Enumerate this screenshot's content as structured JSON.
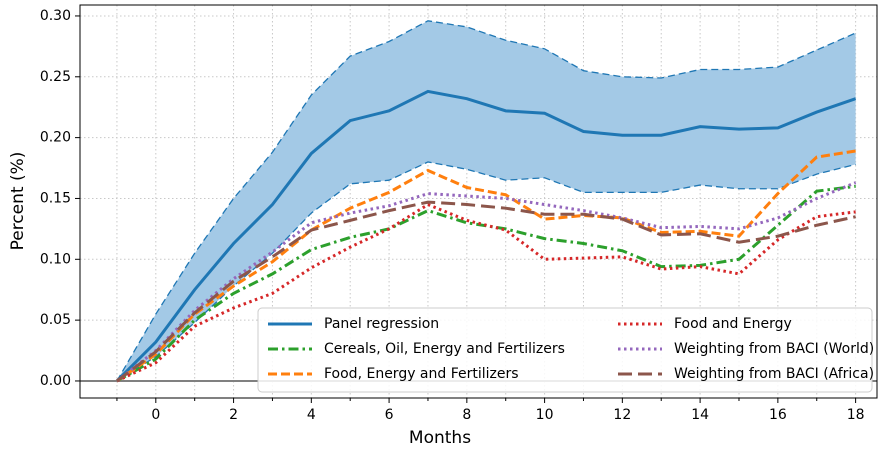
{
  "chart_data": {
    "type": "line",
    "x_label": "Months",
    "y_label": "Percent (%)",
    "x": [
      -1,
      0,
      1,
      2,
      3,
      4,
      5,
      6,
      7,
      8,
      9,
      10,
      11,
      12,
      13,
      14,
      15,
      16,
      17,
      18
    ],
    "xlim": [
      -1.95,
      18.55
    ],
    "xticks": [
      0,
      2,
      4,
      6,
      8,
      10,
      12,
      14,
      16,
      18
    ],
    "x_minor_ticks": [
      -1,
      1,
      3,
      5,
      7,
      9,
      11,
      13,
      15,
      17
    ],
    "ylim": [
      -0.014,
      0.309
    ],
    "yticks": [
      {
        "value": 0,
        "label": "0.00"
      },
      {
        "value": 0.05,
        "label": "0.05"
      },
      {
        "value": 0.1,
        "label": "0.10"
      },
      {
        "value": 0.15,
        "label": "0.15"
      },
      {
        "value": 0.2,
        "label": "0.20"
      },
      {
        "value": 0.25,
        "label": "0.25"
      },
      {
        "value": 0.3,
        "label": "0.30"
      }
    ],
    "grid": true,
    "reference_line": 0,
    "legend_position": "lower right",
    "band": {
      "color": "#a3c9e6",
      "edge_color": "#1f77b4",
      "upper": [
        0,
        0.055,
        0.105,
        0.15,
        0.188,
        0.235,
        0.267,
        0.279,
        0.296,
        0.291,
        0.28,
        0.273,
        0.255,
        0.25,
        0.249,
        0.256,
        0.256,
        0.258,
        0.272,
        0.286
      ],
      "lower": [
        0,
        0.02,
        0.048,
        0.078,
        0.105,
        0.138,
        0.162,
        0.165,
        0.18,
        0.174,
        0.165,
        0.167,
        0.155,
        0.155,
        0.155,
        0.161,
        0.158,
        0.158,
        0.17,
        0.178
      ]
    },
    "series": [
      {
        "name": "Panel regression",
        "color": "#1f77b4",
        "style": "solid",
        "values": [
          0,
          0.032,
          0.075,
          0.113,
          0.145,
          0.187,
          0.214,
          0.222,
          0.238,
          0.232,
          0.222,
          0.22,
          0.205,
          0.202,
          0.202,
          0.209,
          0.207,
          0.208,
          0.221,
          0.232
        ]
      },
      {
        "name": "Cereals, Oil, Energy and Fertilizers",
        "color": "#2ca02c",
        "style": "dashdot",
        "values": [
          0,
          0.018,
          0.05,
          0.072,
          0.088,
          0.108,
          0.118,
          0.125,
          0.14,
          0.13,
          0.125,
          0.117,
          0.113,
          0.107,
          0.094,
          0.095,
          0.1,
          0.128,
          0.156,
          0.16
        ]
      },
      {
        "name": "Food, Energy and Fertilizers",
        "color": "#ff7f0e",
        "style": "dashed",
        "values": [
          0,
          0.022,
          0.055,
          0.078,
          0.098,
          0.124,
          0.142,
          0.155,
          0.173,
          0.159,
          0.153,
          0.133,
          0.136,
          0.134,
          0.122,
          0.123,
          0.119,
          0.154,
          0.184,
          0.189
        ]
      },
      {
        "name": "Food and Energy",
        "color": "#d62728",
        "style": "dotted",
        "values": [
          0,
          0.015,
          0.045,
          0.06,
          0.072,
          0.093,
          0.11,
          0.125,
          0.145,
          0.132,
          0.124,
          0.1,
          0.101,
          0.102,
          0.092,
          0.094,
          0.088,
          0.116,
          0.135,
          0.139
        ]
      },
      {
        "name": "Weighting from BACI (World)",
        "color": "#9467bd",
        "style": "dotted",
        "values": [
          0,
          0.025,
          0.058,
          0.084,
          0.106,
          0.13,
          0.138,
          0.144,
          0.154,
          0.152,
          0.15,
          0.145,
          0.14,
          0.134,
          0.126,
          0.127,
          0.125,
          0.134,
          0.15,
          0.163
        ]
      },
      {
        "name": "Weighting from BACI (Africa)",
        "color": "#8c564b",
        "style": "longdash",
        "values": [
          0,
          0.024,
          0.056,
          0.082,
          0.102,
          0.124,
          0.132,
          0.14,
          0.147,
          0.145,
          0.142,
          0.137,
          0.137,
          0.133,
          0.12,
          0.121,
          0.114,
          0.119,
          0.128,
          0.135
        ]
      }
    ]
  }
}
